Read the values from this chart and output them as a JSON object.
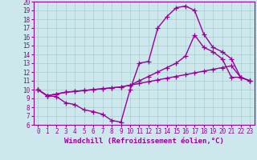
{
  "xlabel": "Windchill (Refroidissement éolien,°C)",
  "bg_color": "#cce8ec",
  "grid_color": "#aacccc",
  "line_color": "#990099",
  "xlim": [
    -0.5,
    23.5
  ],
  "ylim": [
    6,
    20
  ],
  "xticks": [
    0,
    1,
    2,
    3,
    4,
    5,
    6,
    7,
    8,
    9,
    10,
    11,
    12,
    13,
    14,
    15,
    16,
    17,
    18,
    19,
    20,
    21,
    22,
    23
  ],
  "yticks": [
    6,
    7,
    8,
    9,
    10,
    11,
    12,
    13,
    14,
    15,
    16,
    17,
    18,
    19,
    20
  ],
  "line1_x": [
    0,
    1,
    2,
    3,
    4,
    5,
    6,
    7,
    8,
    9,
    10,
    11,
    12,
    13,
    14,
    15,
    16,
    17,
    18,
    19,
    20,
    21,
    22,
    23
  ],
  "line1_y": [
    10.0,
    9.3,
    9.2,
    8.5,
    8.3,
    7.7,
    7.5,
    7.2,
    6.5,
    6.3,
    10.0,
    13.0,
    13.2,
    17.0,
    18.3,
    19.3,
    19.5,
    19.0,
    16.3,
    14.8,
    14.3,
    13.5,
    11.4,
    11.0
  ],
  "line2_x": [
    0,
    1,
    2,
    3,
    4,
    5,
    6,
    7,
    8,
    9,
    10,
    11,
    12,
    13,
    14,
    15,
    16,
    17,
    18,
    19,
    20,
    21,
    22,
    23
  ],
  "line2_y": [
    10.0,
    9.3,
    9.5,
    9.7,
    9.8,
    9.9,
    10.0,
    10.1,
    10.2,
    10.3,
    10.5,
    11.0,
    11.5,
    12.0,
    12.5,
    13.0,
    13.8,
    16.2,
    14.8,
    14.3,
    13.5,
    11.4,
    11.4,
    11.0
  ],
  "line3_x": [
    0,
    1,
    2,
    3,
    4,
    5,
    6,
    7,
    8,
    9,
    10,
    11,
    12,
    13,
    14,
    15,
    16,
    17,
    18,
    19,
    20,
    21,
    22,
    23
  ],
  "line3_y": [
    10.0,
    9.3,
    9.5,
    9.7,
    9.8,
    9.9,
    10.0,
    10.1,
    10.2,
    10.3,
    10.5,
    10.7,
    10.9,
    11.1,
    11.3,
    11.5,
    11.7,
    11.9,
    12.1,
    12.3,
    12.5,
    12.7,
    11.4,
    11.0
  ],
  "marker": "+",
  "markersize": 4,
  "linewidth": 1.0,
  "tick_fontsize": 5.5,
  "label_fontsize": 6.5
}
